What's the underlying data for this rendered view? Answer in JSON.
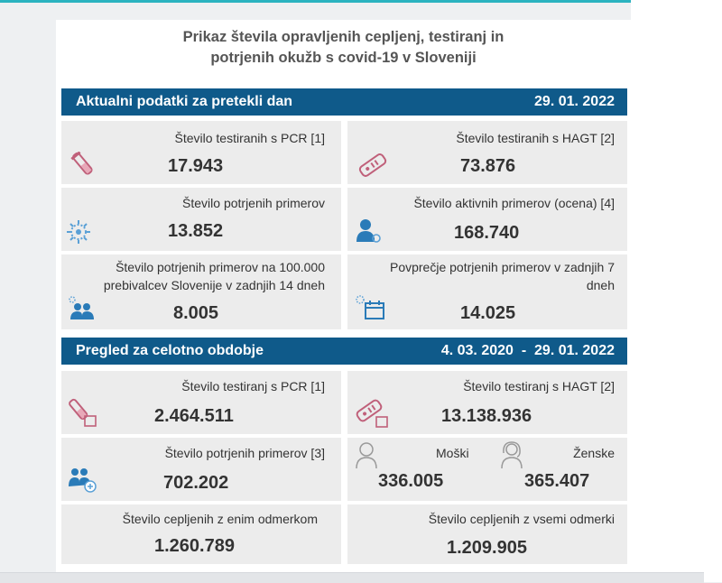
{
  "header": {
    "title_line1": "Prikaz števila opravljenih cepljenj, testiranj in",
    "title_line2": "potrjenih okužb s covid-19 v Sloveniji"
  },
  "daily": {
    "section_title": "Aktualni podatki za pretekli dan",
    "date": "29. 01. 2022",
    "pcr_label": "Število testiranih s PCR [1]",
    "pcr_value": "17.943",
    "hagt_label": "Število testiranih s HAGT [2]",
    "hagt_value": "73.876",
    "confirmed_label": "Število potrjenih primerov",
    "confirmed_value": "13.852",
    "active_label": "Število aktivnih primerov (ocena) [4]",
    "active_value": "168.740",
    "per100k_label_line1": "Število potrjenih primerov na 100.000",
    "per100k_label_line2": "prebivalcev Slovenije v zadnjih 14 dneh",
    "per100k_value": "8.005",
    "avg7_label_line1": "Povprečje potrjenih primerov v zadnjih 7",
    "avg7_label_line2": "dneh",
    "avg7_value": "14.025"
  },
  "overall": {
    "section_title": "Pregled za celotno obdobje",
    "date_from": "4. 03. 2020",
    "date_sep": "-",
    "date_to": "29. 01. 2022",
    "pcr_label": "Število testiranj s PCR [1]",
    "pcr_value": "2.464.511",
    "hagt_label": "Število testiranj s HAGT [2]",
    "hagt_value": "13.138.936",
    "confirmed_label": "Število potrjenih primerov [3]",
    "confirmed_value": "702.202",
    "male_label": "Moški",
    "male_value": "336.005",
    "female_label": "Ženske",
    "female_value": "365.407",
    "vacc1_label": "Število cepljenih z enim odmerkom",
    "vacc1_value": "1.260.789",
    "vaccall_label": "Število cepljenih z vsemi odmerki",
    "vaccall_value": "1.209.905"
  },
  "colors": {
    "section_bg": "#0f5a8a",
    "card_bg": "#ececec",
    "accent_pink": "#c0607a",
    "accent_blue": "#2a7bb8"
  }
}
